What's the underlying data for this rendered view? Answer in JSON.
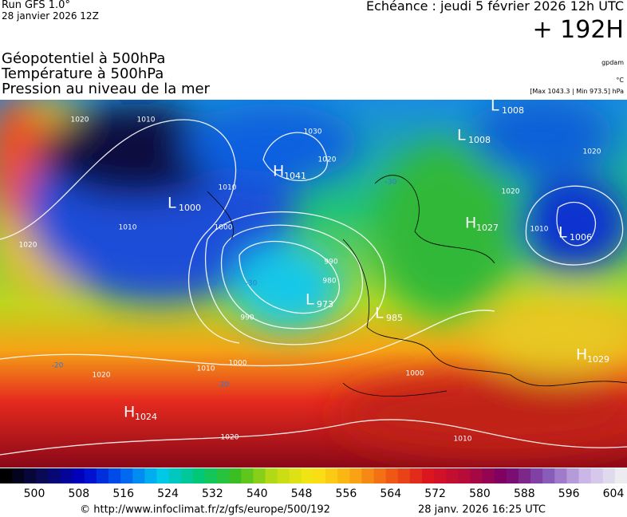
{
  "header": {
    "run": "Run GFS 1.0°",
    "date": "28 janvier 2026 12Z",
    "echeance": "Echéance : jeudi 5 février 2026 12h UTC",
    "lead": "+ 192H"
  },
  "fields": [
    "Géopotentiel à 500hPa",
    "Température à 500hPa",
    "Pression au niveau de la mer"
  ],
  "units": [
    "gpdam",
    "°C",
    "[Max 1043.3 | Min 973.5] hPa"
  ],
  "pressure_centers": [
    {
      "letter": "L",
      "value": "1008"
    },
    {
      "letter": "L",
      "value": "1008"
    },
    {
      "letter": "H",
      "value": "1041"
    },
    {
      "letter": "L",
      "value": "1000"
    },
    {
      "letter": "H",
      "value": "1027"
    },
    {
      "letter": "L",
      "value": "1006"
    },
    {
      "letter": "L",
      "value": "973"
    },
    {
      "letter": "L",
      "value": "985"
    },
    {
      "letter": "H",
      "value": "1029"
    },
    {
      "letter": "H",
      "value": "1024"
    }
  ],
  "contour_labels": [
    "1020",
    "1010",
    "1030",
    "1020",
    "1010",
    "1000",
    "1020",
    "1010",
    "1020",
    "1020",
    "1010",
    "990",
    "980",
    "990",
    "1000",
    "1010",
    "1020",
    "1020",
    "1010",
    "-30",
    "-30",
    "-20",
    "-20",
    "-20",
    "1000"
  ],
  "colorbar": {
    "ticks": [
      500,
      508,
      516,
      524,
      532,
      540,
      548,
      556,
      564,
      572,
      580,
      588,
      596,
      604
    ]
  },
  "footer": {
    "url": "© http://www.infoclimat.fr/z/gfs/europe/500/192",
    "timestamp": "28 janv. 2026 16:25 UTC"
  }
}
